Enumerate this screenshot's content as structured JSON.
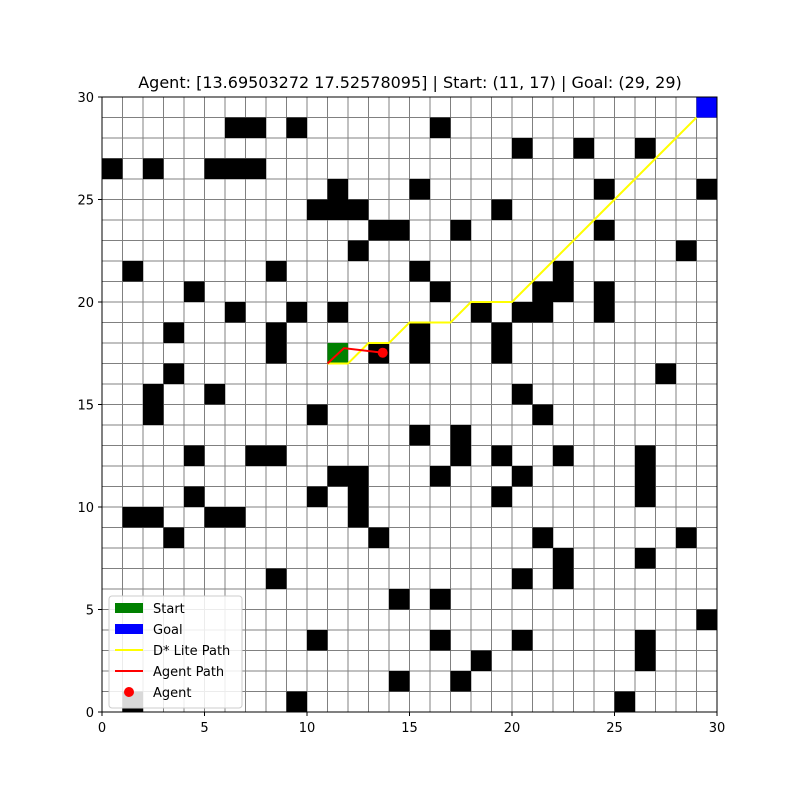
{
  "title": "Agent: [13.69503272 17.52578095] | Start: (11, 17) | Goal: (29, 29)",
  "grid": {
    "size": 30,
    "x_ticks": [
      "0",
      "5",
      "10",
      "15",
      "20",
      "25",
      "30"
    ],
    "y_ticks": [
      "0",
      "5",
      "10",
      "15",
      "20",
      "25",
      "30"
    ],
    "obstacles": [
      [
        6,
        28
      ],
      [
        7,
        28
      ],
      [
        9,
        28
      ],
      [
        16,
        28
      ],
      [
        20,
        27
      ],
      [
        23,
        27
      ],
      [
        26,
        27
      ],
      [
        0,
        26
      ],
      [
        2,
        26
      ],
      [
        5,
        26
      ],
      [
        6,
        26
      ],
      [
        7,
        26
      ],
      [
        11,
        25
      ],
      [
        15,
        25
      ],
      [
        24,
        25
      ],
      [
        29,
        25
      ],
      [
        10,
        24
      ],
      [
        11,
        24
      ],
      [
        12,
        24
      ],
      [
        19,
        24
      ],
      [
        13,
        23
      ],
      [
        14,
        23
      ],
      [
        17,
        23
      ],
      [
        24,
        23
      ],
      [
        12,
        22
      ],
      [
        28,
        22
      ],
      [
        1,
        21
      ],
      [
        8,
        21
      ],
      [
        15,
        21
      ],
      [
        22,
        21
      ],
      [
        4,
        20
      ],
      [
        16,
        20
      ],
      [
        21,
        20
      ],
      [
        22,
        20
      ],
      [
        24,
        20
      ],
      [
        6,
        19
      ],
      [
        9,
        19
      ],
      [
        11,
        19
      ],
      [
        18,
        19
      ],
      [
        20,
        19
      ],
      [
        21,
        19
      ],
      [
        24,
        19
      ],
      [
        3,
        18
      ],
      [
        8,
        18
      ],
      [
        15,
        18
      ],
      [
        19,
        18
      ],
      [
        8,
        17
      ],
      [
        13,
        17
      ],
      [
        15,
        17
      ],
      [
        19,
        17
      ],
      [
        3,
        16
      ],
      [
        27,
        16
      ],
      [
        2,
        15
      ],
      [
        5,
        15
      ],
      [
        20,
        15
      ],
      [
        2,
        14
      ],
      [
        10,
        14
      ],
      [
        21,
        14
      ],
      [
        15,
        13
      ],
      [
        17,
        13
      ],
      [
        4,
        12
      ],
      [
        7,
        12
      ],
      [
        8,
        12
      ],
      [
        17,
        12
      ],
      [
        19,
        12
      ],
      [
        22,
        12
      ],
      [
        26,
        12
      ],
      [
        11,
        11
      ],
      [
        12,
        11
      ],
      [
        16,
        11
      ],
      [
        20,
        11
      ],
      [
        26,
        11
      ],
      [
        4,
        10
      ],
      [
        10,
        10
      ],
      [
        12,
        10
      ],
      [
        19,
        10
      ],
      [
        26,
        10
      ],
      [
        1,
        9
      ],
      [
        2,
        9
      ],
      [
        5,
        9
      ],
      [
        6,
        9
      ],
      [
        12,
        9
      ],
      [
        3,
        8
      ],
      [
        13,
        8
      ],
      [
        21,
        8
      ],
      [
        28,
        8
      ],
      [
        22,
        7
      ],
      [
        26,
        7
      ],
      [
        8,
        6
      ],
      [
        20,
        6
      ],
      [
        22,
        6
      ],
      [
        14,
        5
      ],
      [
        16,
        5
      ],
      [
        29,
        4
      ],
      [
        10,
        3
      ],
      [
        16,
        3
      ],
      [
        20,
        3
      ],
      [
        26,
        3
      ],
      [
        18,
        2
      ],
      [
        26,
        2
      ],
      [
        14,
        1
      ],
      [
        17,
        1
      ],
      [
        1,
        0
      ],
      [
        9,
        0
      ],
      [
        25,
        0
      ]
    ],
    "start": [
      11,
      17
    ],
    "goal": [
      29,
      29
    ],
    "agent": [
      13.69503272,
      17.52578095
    ]
  },
  "chart_data": {
    "type": "scatter",
    "title": "Agent: [13.69503272 17.52578095] | Start: (11, 17) | Goal: (29, 29)",
    "xlim": [
      0,
      30
    ],
    "ylim": [
      0,
      30
    ],
    "grid": true,
    "legend_placement": "bottom-left",
    "dstar_path": [
      [
        11,
        17
      ],
      [
        12,
        17
      ],
      [
        13,
        18
      ],
      [
        14,
        18
      ],
      [
        15,
        19
      ],
      [
        16,
        19
      ],
      [
        17,
        19
      ],
      [
        18,
        20
      ],
      [
        19,
        20
      ],
      [
        20,
        20
      ],
      [
        21,
        21
      ],
      [
        22,
        22
      ],
      [
        23,
        23
      ],
      [
        24,
        24
      ],
      [
        25,
        25
      ],
      [
        26,
        26
      ],
      [
        27,
        27
      ],
      [
        28,
        28
      ],
      [
        29,
        29
      ]
    ],
    "agent_path": [
      [
        11,
        17
      ],
      [
        11.8,
        17.75
      ],
      [
        13.69503272,
        17.52578095
      ]
    ],
    "agent_position": [
      13.69503272,
      17.52578095
    ],
    "colors": {
      "start": "#008000",
      "goal": "#0000ff",
      "dstar_path": "#ffff00",
      "agent_path": "#ff0000",
      "agent": "#ff0000",
      "obstacle": "#000000",
      "gridline": "#808080"
    }
  },
  "legend": [
    {
      "label": "Start",
      "kind": "patch",
      "color": "#008000"
    },
    {
      "label": "Goal",
      "kind": "patch",
      "color": "#0000ff"
    },
    {
      "label": "D* Lite Path",
      "kind": "line",
      "color": "#ffff00"
    },
    {
      "label": "Agent Path",
      "kind": "line",
      "color": "#ff0000"
    },
    {
      "label": "Agent",
      "kind": "marker",
      "color": "#ff0000"
    }
  ]
}
